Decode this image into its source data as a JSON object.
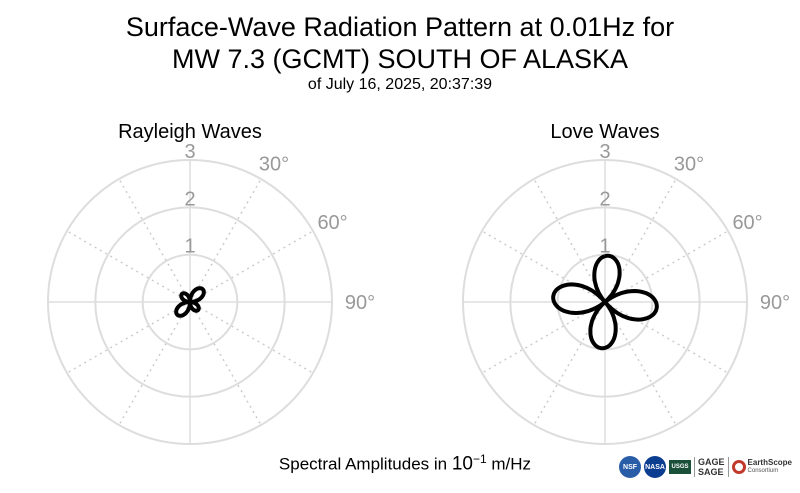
{
  "title_line1": "Surface-Wave Radiation Pattern at 0.01Hz for",
  "title_line2": "MW 7.3 (GCMT) SOUTH OF ALASKA",
  "subtitle": "of July 16, 2025, 20:37:39",
  "footer": {
    "prefix": "Spectral Amplitudes in ",
    "base": "10",
    "exponent": "−1",
    "unit": " m/Hz"
  },
  "logos": {
    "nsf": "NSF",
    "nasa": "NASA",
    "usgs": "USGS",
    "gage": "GAGE",
    "sage": "SAGE",
    "earthscope": "EarthScope",
    "consortium": "Consortium"
  },
  "chart_data": [
    {
      "type": "polar",
      "title": "Rayleigh Waves",
      "radial_ticks": [
        "1",
        "2",
        "3"
      ],
      "radial_range": [
        0,
        3
      ],
      "angle_ticks": [
        "30°",
        "60°",
        "90°"
      ],
      "grid": true,
      "series": [
        {
          "shape": "four-lobe",
          "lobe_amplitudes": [
            0.38,
            0.24,
            0.38,
            0.24
          ],
          "lobe_azimuths_deg": [
            45,
            135,
            225,
            315
          ],
          "color": "#000000"
        }
      ]
    },
    {
      "type": "polar",
      "title": "Love Waves",
      "radial_ticks": [
        "1",
        "2",
        "3"
      ],
      "radial_range": [
        0,
        3
      ],
      "angle_ticks": [
        "30°",
        "60°",
        "90°"
      ],
      "grid": true,
      "series": [
        {
          "shape": "four-lobe",
          "lobe_amplitudes": [
            0.98,
            1.1,
            0.98,
            1.1
          ],
          "lobe_azimuths_deg": [
            4,
            96,
            184,
            276
          ],
          "color": "#000000"
        }
      ]
    }
  ]
}
